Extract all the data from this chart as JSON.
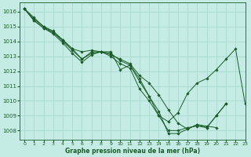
{
  "title": "Graphe pression niveau de la mer (hPa)",
  "bg_color": "#c5ece4",
  "grid_color": "#a8d8cc",
  "line_color": "#1a5c28",
  "xlim": [
    -0.5,
    23
  ],
  "ylim": [
    1007.4,
    1016.6
  ],
  "yticks": [
    1008,
    1009,
    1010,
    1011,
    1012,
    1013,
    1014,
    1015,
    1016
  ],
  "xticks": [
    0,
    1,
    2,
    3,
    4,
    5,
    6,
    7,
    8,
    9,
    10,
    11,
    12,
    13,
    14,
    15,
    16,
    17,
    18,
    19,
    20,
    21,
    22,
    23
  ],
  "series": [
    [
      1016.2,
      1015.6,
      1015.0,
      1014.6,
      1014.1,
      1013.5,
      1012.8,
      1013.3,
      1013.3,
      1013.3,
      1012.1,
      1012.4,
      1011.5,
      1010.3,
      1009.3,
      1007.8,
      1007.8,
      1008.1,
      1008.4,
      1008.2,
      1009.0,
      1009.8,
      null,
      null
    ],
    [
      1016.2,
      1015.5,
      1015.0,
      1014.7,
      1014.1,
      1013.5,
      1013.3,
      1013.4,
      1013.3,
      1013.1,
      1012.8,
      1012.5,
      1011.7,
      1011.2,
      1010.4,
      1009.4,
      1008.5,
      1008.1,
      1008.4,
      1008.3,
      1008.2,
      null,
      null,
      null
    ],
    [
      1016.2,
      1015.4,
      1014.9,
      1014.6,
      1014.0,
      1013.4,
      1012.8,
      1013.2,
      1013.3,
      1013.2,
      1012.7,
      1012.4,
      1011.3,
      1010.3,
      1009.0,
      1008.0,
      1008.0,
      1008.2,
      1008.3,
      1008.2,
      1009.0,
      1009.8,
      null,
      null
    ],
    [
      1016.2,
      1015.4,
      1014.9,
      1014.5,
      1013.9,
      1013.2,
      1012.6,
      1013.1,
      1013.3,
      1013.0,
      1012.5,
      1012.2,
      1010.8,
      1010.0,
      1009.0,
      1008.6,
      1009.2,
      1010.5,
      1011.2,
      1011.5,
      1012.1,
      1012.8,
      1013.5,
      1009.8
    ]
  ]
}
